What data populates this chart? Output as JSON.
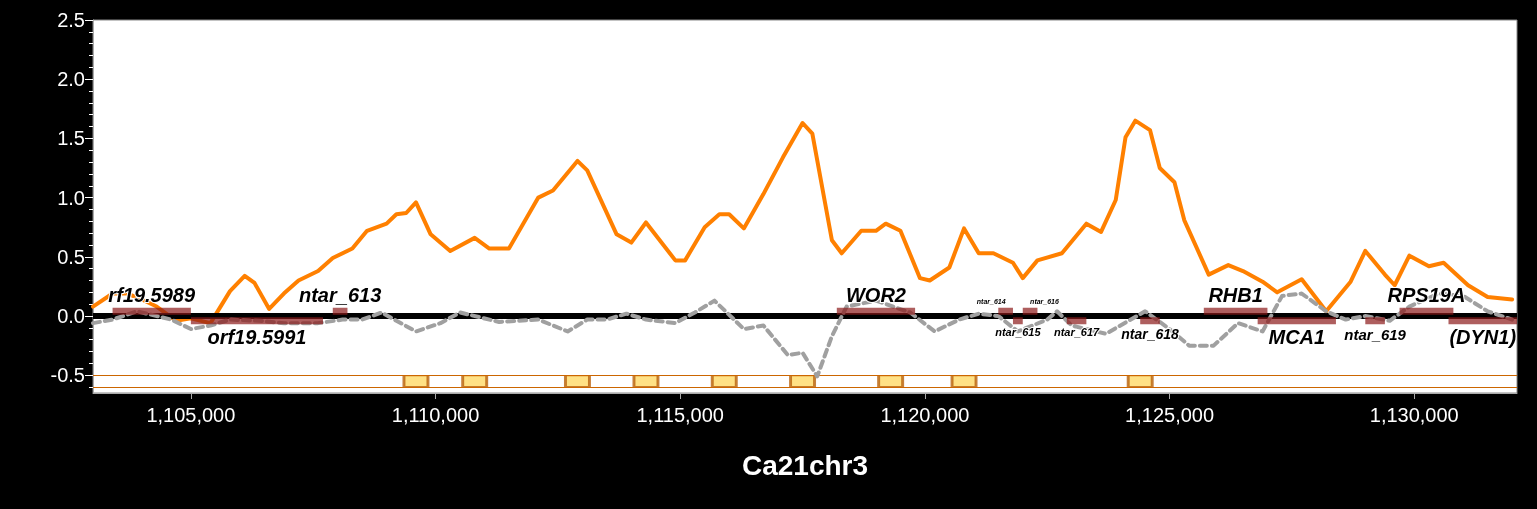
{
  "chart_data": {
    "type": "line",
    "xlabel": "Ca21chr3",
    "xlim": [
      1103000,
      1132100
    ],
    "xticks": [
      {
        "value": 1105000,
        "label": "1,105,000"
      },
      {
        "value": 1110000,
        "label": "1,110,000"
      },
      {
        "value": 1115000,
        "label": "1,115,000"
      },
      {
        "value": 1120000,
        "label": "1,120,000"
      },
      {
        "value": 1125000,
        "label": "1,125,000"
      },
      {
        "value": 1130000,
        "label": "1,130,000"
      }
    ],
    "ylim": [
      -0.65,
      2.5
    ],
    "yticks": [
      {
        "value": -0.5,
        "label": "-0.5"
      },
      {
        "value": 0,
        "label": "0.0"
      },
      {
        "value": 0.5,
        "label": "0.5"
      },
      {
        "value": 1,
        "label": "1.0"
      },
      {
        "value": 1.5,
        "label": "1.5"
      },
      {
        "value": 2,
        "label": "2.0"
      },
      {
        "value": 2.5,
        "label": "2.5"
      }
    ],
    "marker": "none",
    "series": [
      {
        "color": "#ff8000",
        "line_style": "solid",
        "x": [
          1103000,
          1103400,
          1103700,
          1104000,
          1104300,
          1104700,
          1105000,
          1105400,
          1105800,
          1106100,
          1106300,
          1106600,
          1106900,
          1107200,
          1107600,
          1107900,
          1108300,
          1108600,
          1109000,
          1109200,
          1109400,
          1109600,
          1109900,
          1110300,
          1110800,
          1111100,
          1111500,
          1112100,
          1112400,
          1112900,
          1113100,
          1113700,
          1114000,
          1114300,
          1114900,
          1115100,
          1115500,
          1115800,
          1116000,
          1116300,
          1116700,
          1117100,
          1117500,
          1117700,
          1118100,
          1118300,
          1118700,
          1119000,
          1119200,
          1119500,
          1119900,
          1120100,
          1120500,
          1120800,
          1121100,
          1121400,
          1121800,
          1122000,
          1122300,
          1122800,
          1123300,
          1123600,
          1123900,
          1124100,
          1124300,
          1124600,
          1124800,
          1125100,
          1125300,
          1125800,
          1126200,
          1126500,
          1126900,
          1127200,
          1127700,
          1128200,
          1128700,
          1129000,
          1129400,
          1129600,
          1129900,
          1130300,
          1130600,
          1131100,
          1131500,
          1132000
        ],
        "values": [
          0.08,
          0.19,
          0.19,
          0.14,
          0.08,
          -0.04,
          -0.02,
          -0.06,
          0.21,
          0.34,
          0.28,
          0.06,
          0.19,
          0.3,
          0.38,
          0.49,
          0.57,
          0.72,
          0.78,
          0.86,
          0.87,
          0.96,
          0.69,
          0.55,
          0.66,
          0.57,
          0.57,
          1.0,
          1.06,
          1.31,
          1.23,
          0.69,
          0.62,
          0.79,
          0.47,
          0.47,
          0.75,
          0.86,
          0.86,
          0.74,
          1.03,
          1.34,
          1.63,
          1.54,
          0.64,
          0.53,
          0.72,
          0.72,
          0.78,
          0.72,
          0.32,
          0.3,
          0.41,
          0.74,
          0.53,
          0.53,
          0.45,
          0.32,
          0.47,
          0.53,
          0.78,
          0.71,
          0.98,
          1.51,
          1.65,
          1.57,
          1.25,
          1.13,
          0.81,
          0.35,
          0.43,
          0.38,
          0.29,
          0.2,
          0.31,
          0.04,
          0.29,
          0.55,
          0.35,
          0.26,
          0.51,
          0.42,
          0.45,
          0.26,
          0.16,
          0.14
        ]
      },
      {
        "color": "#a0a0a0",
        "line_style": "dashed",
        "x": [
          1103000,
          1103400,
          1103900,
          1104600,
          1105000,
          1105400,
          1105800,
          1106400,
          1106900,
          1107600,
          1108100,
          1108500,
          1108900,
          1109200,
          1109600,
          1110100,
          1110500,
          1110900,
          1111300,
          1112100,
          1112700,
          1113100,
          1113500,
          1113900,
          1114300,
          1114900,
          1115300,
          1115700,
          1116300,
          1116700,
          1117200,
          1117500,
          1117800,
          1118100,
          1118400,
          1119000,
          1119700,
          1120200,
          1120700,
          1121100,
          1121500,
          1121900,
          1122500,
          1122700,
          1123000,
          1123700,
          1124500,
          1125000,
          1125400,
          1125900,
          1126400,
          1126900,
          1127300,
          1127700,
          1128200,
          1128600,
          1129000,
          1129500,
          1129900,
          1130500,
          1131000,
          1131500,
          1132000
        ],
        "values": [
          -0.06,
          -0.03,
          0.04,
          -0.03,
          -0.11,
          -0.08,
          -0.03,
          -0.04,
          -0.06,
          -0.06,
          -0.03,
          -0.03,
          0.03,
          -0.04,
          -0.13,
          -0.06,
          0.03,
          -0.01,
          -0.05,
          -0.03,
          -0.13,
          -0.03,
          -0.03,
          0.02,
          -0.03,
          -0.06,
          0.03,
          0.13,
          -0.11,
          -0.08,
          -0.33,
          -0.31,
          -0.51,
          -0.17,
          0.08,
          0.13,
          0.03,
          -0.13,
          -0.03,
          0.02,
          0,
          -0.13,
          -0.03,
          0.04,
          -0.08,
          -0.15,
          0.04,
          -0.11,
          -0.25,
          -0.25,
          -0.06,
          -0.13,
          0.17,
          0.19,
          0.04,
          -0.03,
          0,
          -0.04,
          0.08,
          0.19,
          0.17,
          0.04,
          -0.03
        ]
      },
      {
        "type": "scatter",
        "marker": "square",
        "color": "#ffd966",
        "x": [
          1109600,
          1110800,
          1112900,
          1114300,
          1115900,
          1117500,
          1119300,
          1120800,
          1124400
        ],
        "values": [
          -0.55,
          -0.55,
          -0.55,
          -0.55,
          -0.55,
          -0.55,
          -0.55,
          -0.55,
          -0.55
        ]
      },
      {
        "name": "rf19.5989",
        "color": "#8b1a1a",
        "x": [
          1103400,
          1105000
        ],
        "values": [
          0.04,
          0.04
        ]
      },
      {
        "name": "orf19.5991",
        "color": "#8b1a1a",
        "x": [
          1105000,
          1107700
        ],
        "values": [
          -0.04,
          -0.04
        ]
      },
      {
        "name": "ntar_613",
        "color": "#8b1a1a",
        "x": [
          1107900,
          1108200
        ],
        "values": [
          0.04,
          0.04
        ]
      },
      {
        "name": "WOR2",
        "color": "#8b1a1a",
        "x": [
          1118200,
          1119800
        ],
        "values": [
          0.04,
          0.04
        ]
      },
      {
        "name": "ntar_614",
        "color": "#8b1a1a",
        "x": [
          1121500,
          1121800
        ],
        "values": [
          0.04,
          0.04
        ]
      },
      {
        "name": "ntar_615",
        "color": "#8b1a1a",
        "x": [
          1121800,
          1122000
        ],
        "values": [
          -0.04,
          -0.04
        ]
      },
      {
        "name": "ntar_616",
        "color": "#8b1a1a",
        "x": [
          1122000,
          1122300
        ],
        "values": [
          0.04,
          0.04
        ]
      },
      {
        "name": "ntar_617",
        "color": "#8b1a1a",
        "x": [
          1122900,
          1123300
        ],
        "values": [
          -0.04,
          -0.04
        ]
      },
      {
        "name": "ntar_618",
        "color": "#8b1a1a",
        "x": [
          1124400,
          1124800
        ],
        "values": [
          -0.04,
          -0.04
        ]
      },
      {
        "name": "RHB1",
        "color": "#8b1a1a",
        "x": [
          1125700,
          1127000
        ],
        "values": [
          0.04,
          0.04
        ]
      },
      {
        "name": "MCA1",
        "color": "#8b1a1a",
        "x": [
          1126800,
          1128400
        ],
        "values": [
          -0.04,
          -0.04
        ]
      },
      {
        "name": "ntar_619",
        "color": "#8b1a1a",
        "x": [
          1129000,
          1129400
        ],
        "values": [
          -0.04,
          -0.04
        ]
      },
      {
        "name": "RPS19A",
        "color": "#8b1a1a",
        "x": [
          1129700,
          1130800
        ],
        "values": [
          0.04,
          0.04
        ]
      },
      {
        "name": "(DYN1)",
        "color": "#8b1a1a",
        "x": [
          1130700,
          1132100
        ],
        "values": [
          -0.04,
          -0.04
        ]
      }
    ],
    "ref_lines": [
      {
        "axis": "y",
        "value": 0,
        "color": "#000000"
      },
      {
        "axis": "y",
        "value": -0.5,
        "color": "#cc6600"
      },
      {
        "axis": "y",
        "value": -0.6,
        "color": "#cc6600"
      }
    ]
  }
}
